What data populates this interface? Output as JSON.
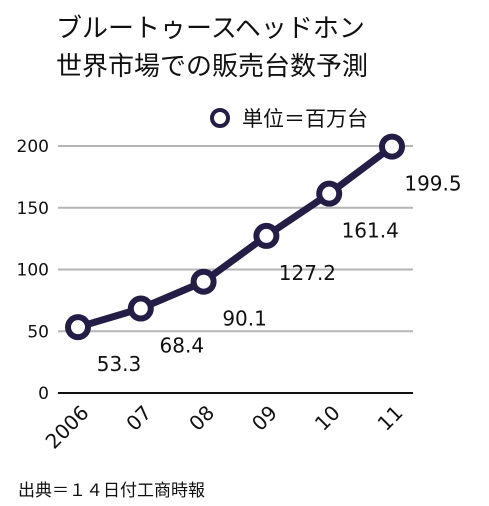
{
  "chart_data": {
    "type": "line",
    "title": [
      "ブルートゥースヘッドホン",
      "世界市場での販売台数予測"
    ],
    "legend": "単位＝百万台",
    "legend_position": "top-right",
    "categories": [
      "2006",
      "07",
      "08",
      "09",
      "10",
      "11"
    ],
    "series": [
      {
        "values": [
          53.3,
          68.4,
          90.1,
          127.2,
          161.4,
          199.5
        ],
        "value_labels": [
          "53.3",
          "68.4",
          "90.1",
          "127.2",
          "161.4",
          "199.5"
        ]
      }
    ],
    "y_ticks": [
      "0",
      "50",
      "100",
      "150",
      "200"
    ],
    "ylim": [
      0,
      200
    ],
    "grid": true,
    "line_color": "#241d45",
    "grid_color": "#b5b5b5",
    "source": "出典＝１４日付工商時報"
  }
}
